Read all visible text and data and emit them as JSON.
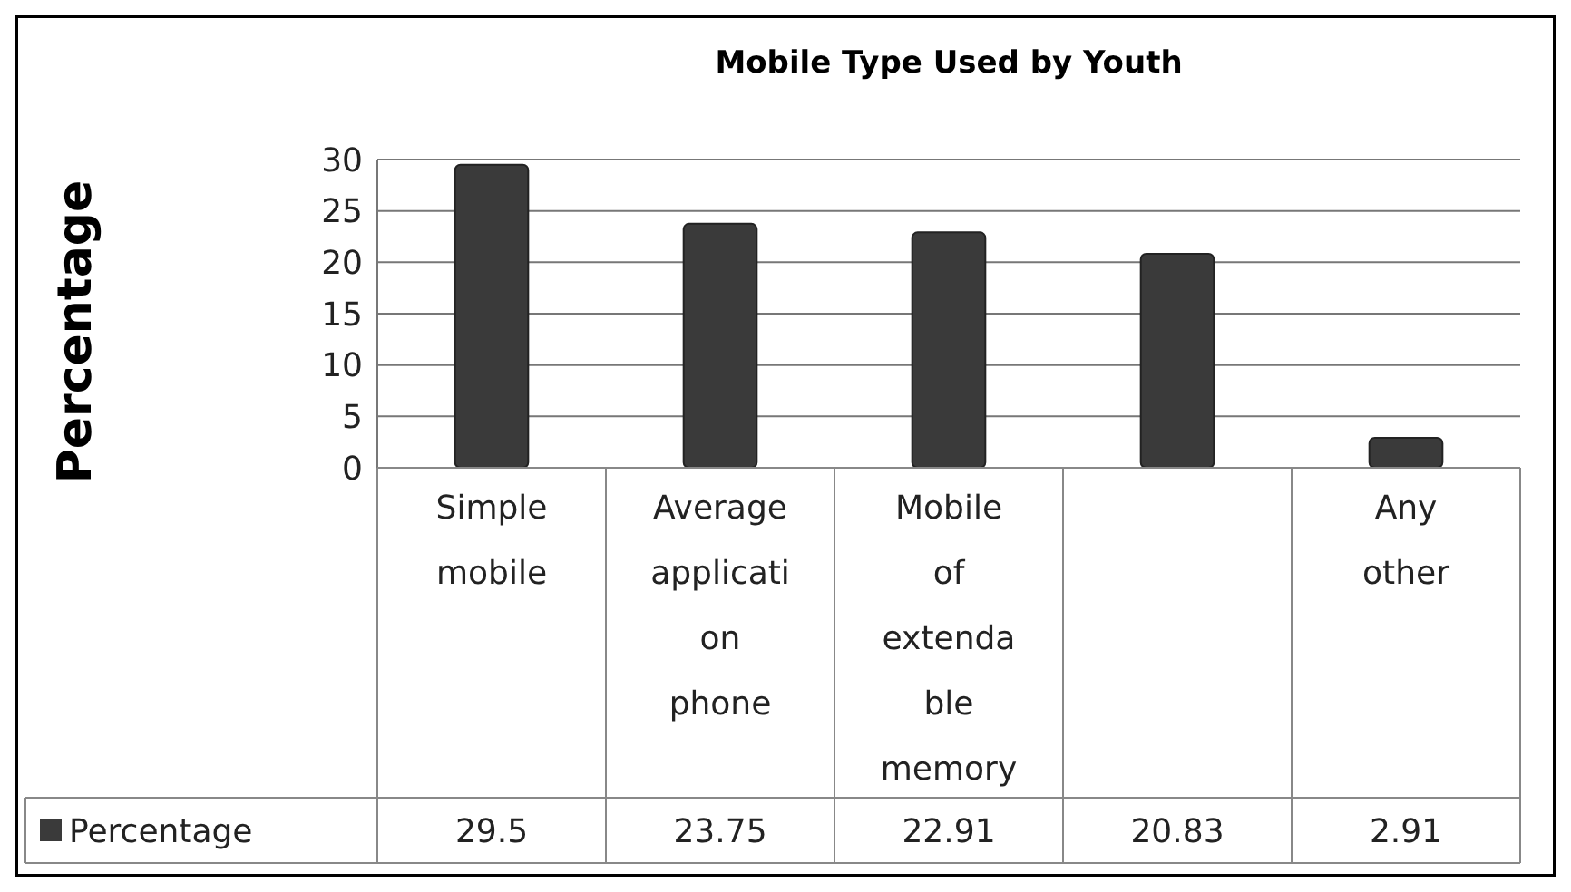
{
  "chart_data": {
    "type": "bar",
    "title": "Mobile Type Used by Youth",
    "ylabel": "Percentage",
    "categories": [
      "Simple mobile",
      "Average application phone",
      "Mobile of extendable memory",
      null,
      "Any other"
    ],
    "series": [
      {
        "name": "Percentage",
        "color": "#3a3a3a",
        "values": [
          29.5,
          23.75,
          22.91,
          20.83,
          2.91
        ]
      }
    ],
    "ylim": [
      0,
      30
    ],
    "yticks": [
      0,
      5,
      10,
      15,
      20,
      25,
      30
    ],
    "grid": "y",
    "legend": "bottom left",
    "data_labels": true
  }
}
